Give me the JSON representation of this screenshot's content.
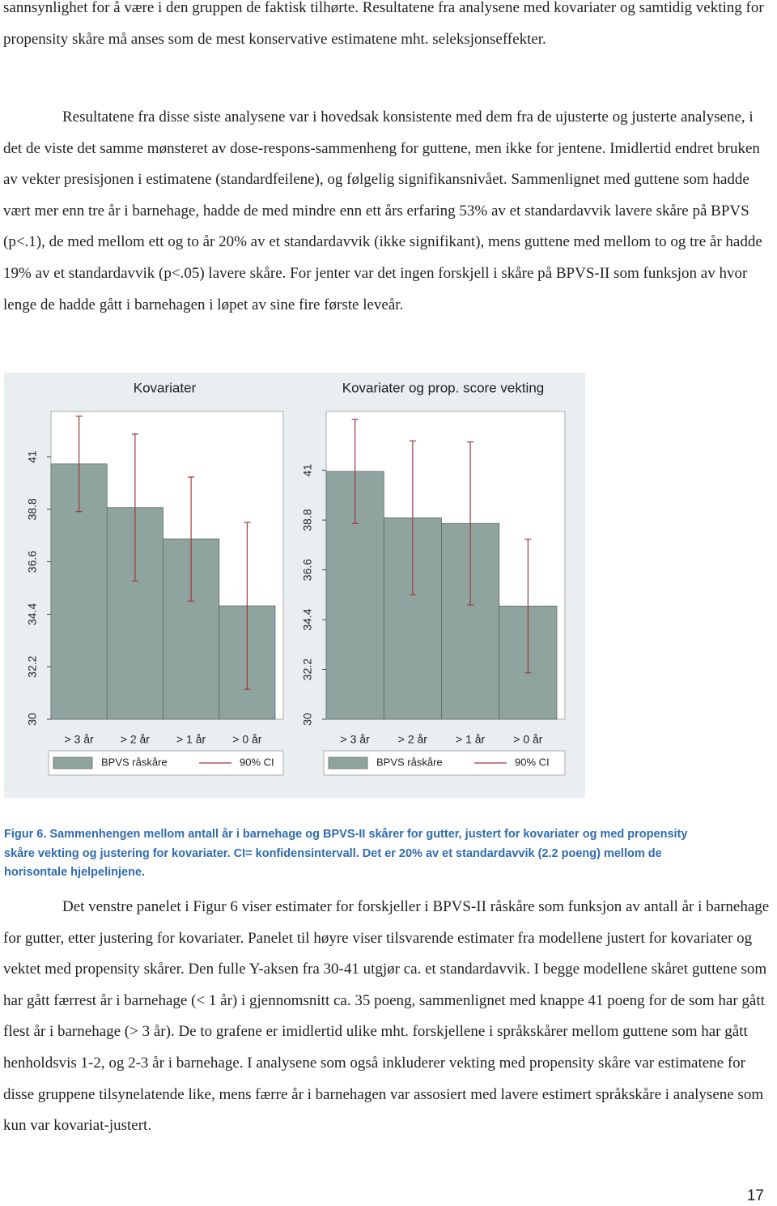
{
  "paragraphs": [
    "sannsynlighet for å være i den gruppen de faktisk tilhørte. Resultatene fra analysene med kovariater og samtidig vekting for propensity skåre må anses som de mest konservative estimatene mht. seleksjonseffekter.",
    "Resultatene fra disse siste analysene var i hovedsak konsistente med dem fra de ujusterte og justerte analysene, i det de viste det samme mønsteret av dose-respons-sammenheng for guttene, men ikke for jentene. Imidlertid endret bruken av vekter presisjonen i estimatene (standardfeilene), og følgelig signifikansnivået. Sammenlignet med guttene som hadde vært mer enn tre år i barnehage, hadde de med mindre enn ett års erfaring 53% av et standardavvik lavere skåre på BPVS (p<.1), de med mellom ett og to år 20% av et standardavvik (ikke signifikant), mens guttene med mellom to og tre år hadde 19% av et standardavvik (p<.05) lavere skåre. For jenter var det ingen forskjell i skåre på BPVS-II som funksjon av hvor lenge de hadde gått i barnehagen i løpet av sine fire første leveår.",
    "Det venstre panelet i Figur 6 viser estimater for forskjeller i BPVS-II råskåre som funksjon av antall år i barnehage for gutter, etter justering for kovariater. Panelet til høyre viser tilsvarende estimater fra modellene justert for kovariater og vektet med propensity skårer. Den fulle Y-aksen fra 30-41 utgjør ca. et standardavvik. I begge modellene skåret guttene som har gått færrest år i barnehage (< 1 år) i gjennomsnitt ca. 35 poeng, sammenlignet med knappe 41 poeng for de som har gått flest år i barnehage (> 3 år). De to grafene er imidlertid ulike mht. forskjellene i språkskårer mellom guttene som har gått henholdsvis 1-2, og 2-3 år i barnehage. I analysene som også inkluderer vekting med propensity skåre var estimatene for disse gruppene tilsynelatende like, mens færre år i barnehagen var assosiert med lavere estimert språkskåre i analysene som kun var kovariat-justert."
  ],
  "caption": "Figur 6. Sammenhengen mellom antall år i barnehage og BPVS-II skårer for gutter, justert for kovariater og med propensity skåre vekting og justering for kovariater. CI= konfidensintervall. Det er 20% av et standardavvik (2.2 poeng) mellom de horisontale hjelpelinjene.",
  "page_number": "17",
  "chart_data": [
    {
      "type": "bar",
      "title": "Kovariater",
      "categories": [
        "> 3 år",
        "> 2 år",
        "> 1 år",
        "> 0 år"
      ],
      "series": [
        {
          "name": "BPVS råskåre",
          "color": "#8fa39f",
          "values": [
            40.7,
            38.87,
            37.56,
            34.75
          ]
        }
      ],
      "ci": {
        "name": "90% CI",
        "color": "#9b3a3a",
        "low": [
          38.7,
          35.8,
          34.95,
          31.25
        ],
        "high": [
          42.7,
          41.95,
          40.15,
          38.25
        ]
      },
      "ylim": [
        30,
        42.9
      ],
      "yticks": [
        30,
        32.2,
        34.4,
        36.6,
        38.8,
        41
      ]
    },
    {
      "type": "bar",
      "title": "Kovariater og prop. score vekting",
      "categories": [
        "> 3 år",
        "> 2 år",
        "> 1 år",
        "> 0 år"
      ],
      "series": [
        {
          "name": "BPVS råskåre",
          "color": "#8fa39f",
          "values": [
            40.95,
            38.9,
            38.65,
            35.0
          ]
        }
      ],
      "ci": {
        "name": "90% CI",
        "color": "#9b3a3a",
        "low": [
          38.65,
          35.5,
          35.05,
          32.05
        ],
        "high": [
          43.25,
          42.3,
          42.25,
          37.95
        ]
      },
      "ylim": [
        30,
        43.6
      ],
      "yticks": [
        30,
        32.2,
        34.4,
        36.6,
        38.8,
        41
      ]
    }
  ]
}
